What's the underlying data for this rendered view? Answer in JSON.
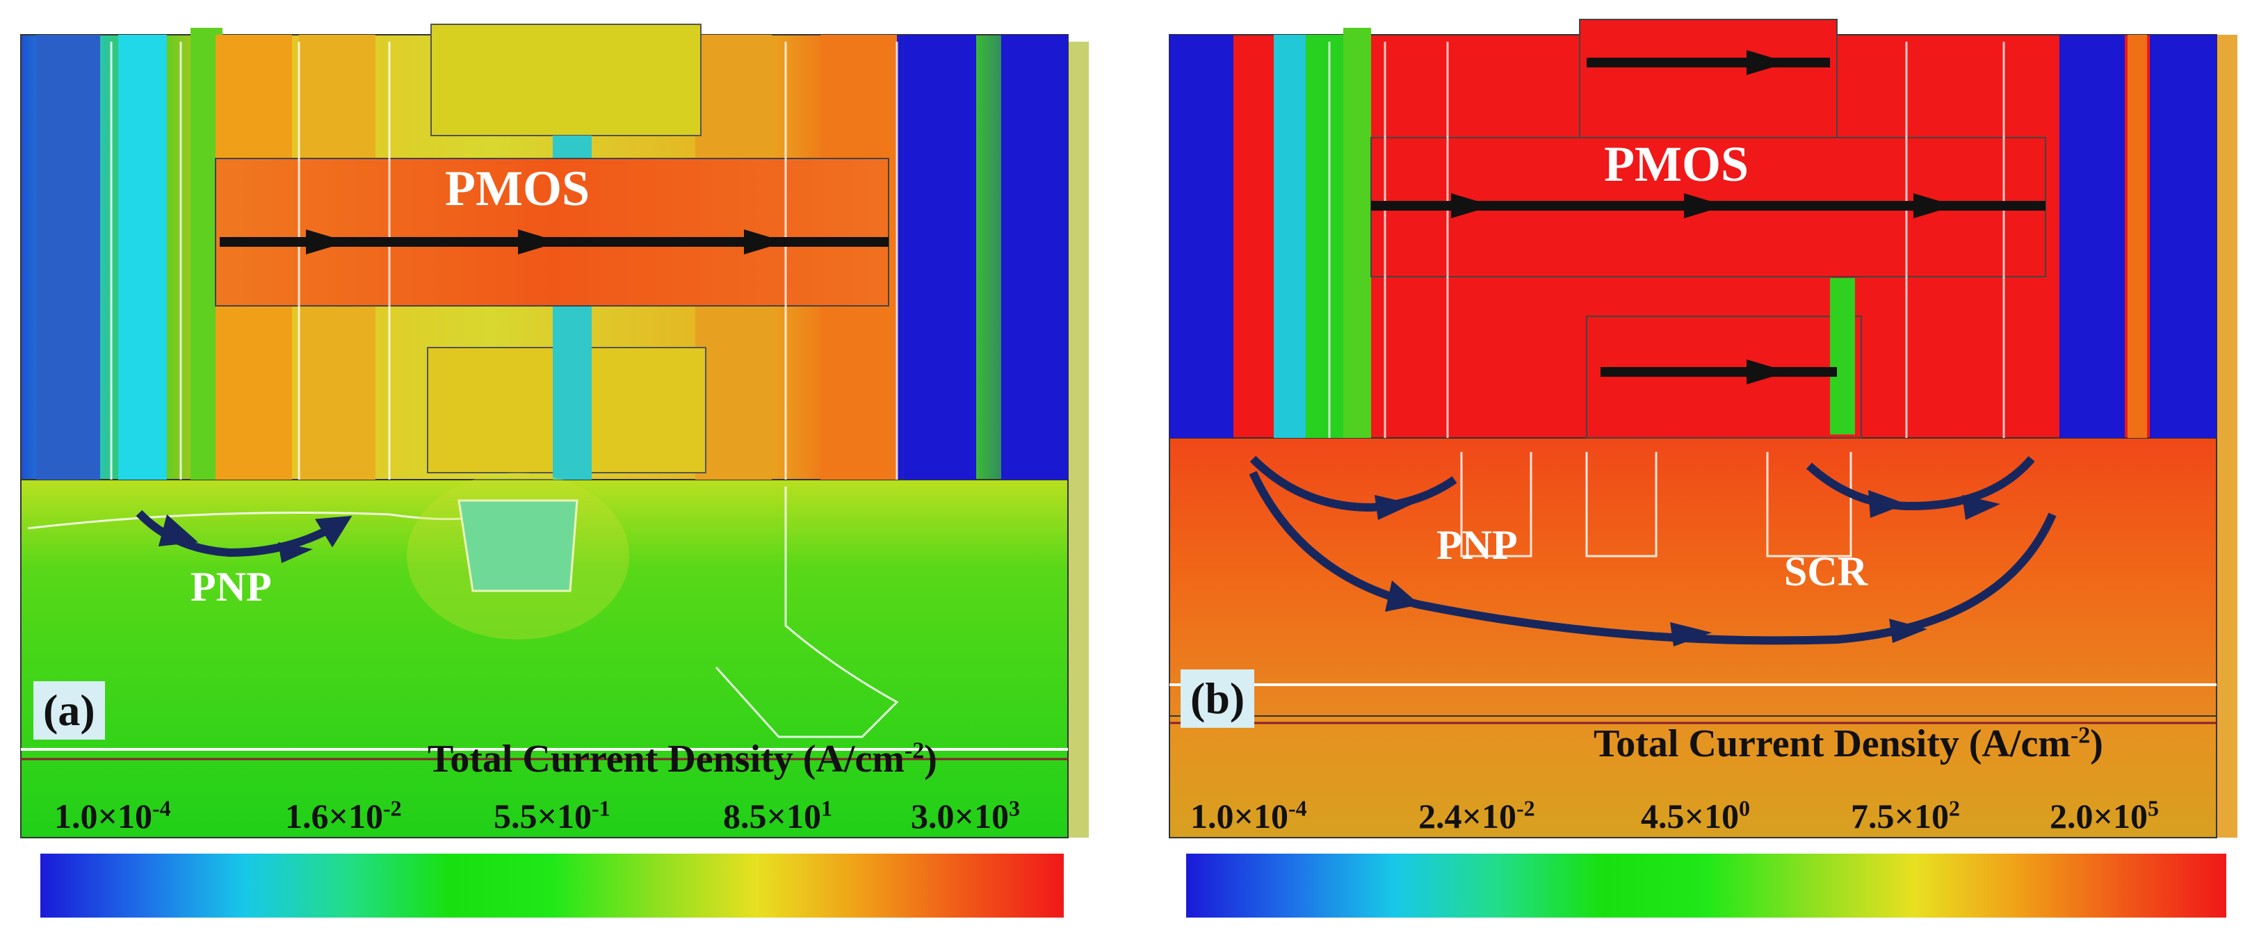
{
  "panels": [
    {
      "tag": "(a)",
      "device_label": "PMOS",
      "path_labels": [
        "PNP"
      ],
      "colorbar": {
        "title": "Total Current Density (A/cm",
        "title_exp": "-2",
        "title_close": ")",
        "ticks": [
          {
            "mant": "1.0×10",
            "exp": "-4"
          },
          {
            "mant": "1.6×10",
            "exp": "-2"
          },
          {
            "mant": "5.5×10",
            "exp": "-1"
          },
          {
            "mant": "8.5×10",
            "exp": "1"
          },
          {
            "mant": "3.0×10",
            "exp": "3"
          }
        ]
      }
    },
    {
      "tag": "(b)",
      "device_label": "PMOS",
      "path_labels": [
        "PNP",
        "SCR"
      ],
      "colorbar": {
        "title": "Total Current Density (A/cm",
        "title_exp": "-2",
        "title_close": ")",
        "ticks": [
          {
            "mant": "1.0×10",
            "exp": "-4"
          },
          {
            "mant": "2.4×10",
            "exp": "-2"
          },
          {
            "mant": "4.5×10",
            "exp": "0"
          },
          {
            "mant": "7.5×10",
            "exp": "2"
          },
          {
            "mant": "2.0×10",
            "exp": "5"
          }
        ]
      }
    }
  ],
  "colors": {
    "scale": [
      "#1a1ad8",
      "#1e6fe8",
      "#18c8e8",
      "#22dd88",
      "#18e010",
      "#20e818",
      "#8ce020",
      "#e8e020",
      "#f0a018",
      "#f05a18",
      "#f01818"
    ],
    "arrow_current": "#111111",
    "arrow_parasitic": "#17275e"
  }
}
